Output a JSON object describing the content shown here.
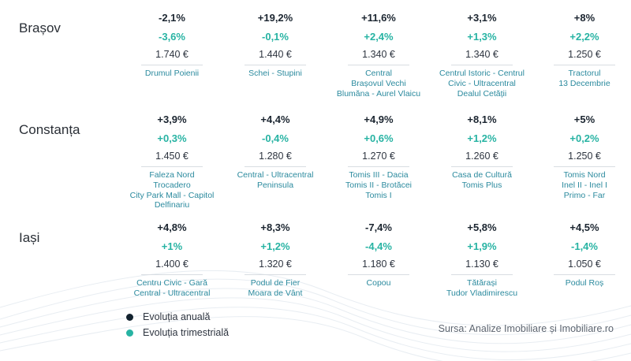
{
  "chart_data": {
    "type": "table",
    "legend": {
      "items": [
        {
          "label": "Evoluția anuală",
          "color": "#13222e"
        },
        {
          "label": "Evoluția trimestrială",
          "color": "#27b3a3"
        }
      ]
    },
    "source": "Sursa: Analize Imobiliare și Imobiliare.ro",
    "cities": [
      {
        "name": "Brașov",
        "entries": [
          {
            "annual": "-2,1%",
            "quarterly": "-3,6%",
            "price": "1.740 €",
            "neighborhoods": [
              "Drumul Poienii"
            ]
          },
          {
            "annual": "+19,2%",
            "quarterly": "-0,1%",
            "price": "1.440 €",
            "neighborhoods": [
              "Schei - Stupini"
            ]
          },
          {
            "annual": "+11,6%",
            "quarterly": "+2,4%",
            "price": "1.340 €",
            "neighborhoods": [
              "Central",
              "Brașovul Vechi",
              "Blumăna - Aurel Vlaicu"
            ]
          },
          {
            "annual": "+3,1%",
            "quarterly": "+1,3%",
            "price": "1.340 €",
            "neighborhoods": [
              "Centrul Istoric - Centrul",
              "Civic - Ultracentral",
              "Dealul Cetății"
            ]
          },
          {
            "annual": "+8%",
            "quarterly": "+2,2%",
            "price": "1.250 €",
            "neighborhoods": [
              "Tractorul",
              "13 Decembrie"
            ]
          }
        ]
      },
      {
        "name": "Constanța",
        "entries": [
          {
            "annual": "+3,9%",
            "quarterly": "+0,3%",
            "price": "1.450 €",
            "neighborhoods": [
              "Faleza Nord",
              "Trocadero",
              "City Park Mall - Capitol",
              "Delfinariu"
            ]
          },
          {
            "annual": "+4,4%",
            "quarterly": "-0,4%",
            "price": "1.280 €",
            "neighborhoods": [
              "Central - Ultracentral",
              "Peninsula"
            ]
          },
          {
            "annual": "+4,9%",
            "quarterly": "+0,6%",
            "price": "1.270 €",
            "neighborhoods": [
              "Tomis III - Dacia",
              "Tomis II - Brotăcei",
              "Tomis I"
            ]
          },
          {
            "annual": "+8,1%",
            "quarterly": "+1,2%",
            "price": "1.260 €",
            "neighborhoods": [
              "Casa de Cultură",
              "Tomis Plus"
            ]
          },
          {
            "annual": "+5%",
            "quarterly": "+0,2%",
            "price": "1.250 €",
            "neighborhoods": [
              "Tomis Nord",
              "Inel II - Inel I",
              "Primo - Far"
            ]
          }
        ]
      },
      {
        "name": "Iași",
        "entries": [
          {
            "annual": "+4,8%",
            "quarterly": "+1%",
            "price": "1.400 €",
            "neighborhoods": [
              "Centru Civic - Gară",
              "Central - Ultracentral"
            ]
          },
          {
            "annual": "+8,3%",
            "quarterly": "+1,2%",
            "price": "1.320 €",
            "neighborhoods": [
              "Podul de Fier",
              "Moara de Vânt"
            ]
          },
          {
            "annual": "-7,4%",
            "quarterly": "-4,4%",
            "price": "1.180 €",
            "neighborhoods": [
              "Copou"
            ]
          },
          {
            "annual": "+5,8%",
            "quarterly": "+1,9%",
            "price": "1.130 €",
            "neighborhoods": [
              "Tătărași",
              "Tudor Vladimirescu"
            ]
          },
          {
            "annual": "+4,5%",
            "quarterly": "-1,4%",
            "price": "1.050 €",
            "neighborhoods": [
              "Podul Roș"
            ]
          }
        ]
      }
    ]
  }
}
